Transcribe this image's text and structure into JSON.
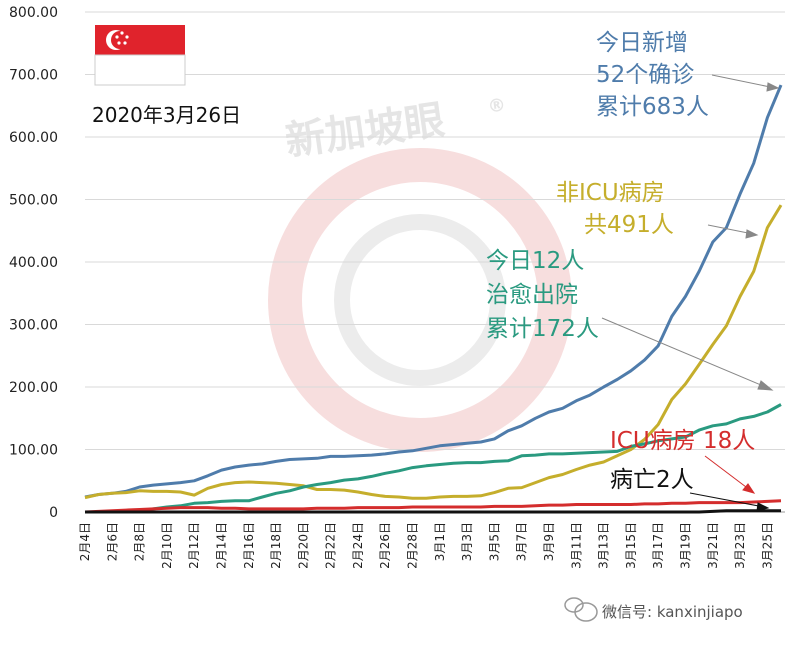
{
  "colors": {
    "confirmed": "#4f7cab",
    "non_icu": "#c5ae2c",
    "discharged": "#2a9a80",
    "icu": "#d42d2d",
    "deaths": "#111111",
    "flag_red": "#e0232c"
  },
  "header": {
    "date": "2020年3月26日"
  },
  "watermark": {
    "text": "新加坡眼",
    "registered": "®"
  },
  "annotations": {
    "confirmed": [
      "今日新增",
      "52个确诊",
      "累计683人"
    ],
    "non_icu": [
      "非ICU病房",
      "共491人"
    ],
    "discharged": [
      "今日12人",
      "治愈出院",
      "累计172人"
    ],
    "icu": "ICU病房 18人",
    "deaths": "病亡2人"
  },
  "footer": {
    "wechat": "微信号: kanxinjiapo"
  },
  "chart_data": {
    "type": "line",
    "ylim": [
      0,
      800
    ],
    "y_ticks": [
      "0",
      "100.00",
      "200.00",
      "300.00",
      "400.00",
      "500.00",
      "600.00",
      "700.00",
      "800.00"
    ],
    "x_tick_labels": [
      "2月4日",
      "2月6日",
      "2月8日",
      "2月10日",
      "2月12日",
      "2月14日",
      "2月16日",
      "2月18日",
      "2月20日",
      "2月22日",
      "2月24日",
      "2月26日",
      "2月28日",
      "3月1日",
      "3月3日",
      "3月5日",
      "3月7日",
      "3月9日",
      "3月11日",
      "3月13日",
      "3月15日",
      "3月17日",
      "3月19日",
      "3月21日",
      "3月23日",
      "3月25日"
    ],
    "x": [
      "2月4日",
      "2月5日",
      "2月6日",
      "2月7日",
      "2月8日",
      "2月9日",
      "2月10日",
      "2月11日",
      "2月12日",
      "2月13日",
      "2月14日",
      "2月15日",
      "2月16日",
      "2月17日",
      "2月18日",
      "2月19日",
      "2月20日",
      "2月21日",
      "2月22日",
      "2月23日",
      "2月24日",
      "2月25日",
      "2月26日",
      "2月27日",
      "2月28日",
      "2月29日",
      "3月1日",
      "3月2日",
      "3月3日",
      "3月4日",
      "3月5日",
      "3月6日",
      "3月7日",
      "3月8日",
      "3月9日",
      "3月10日",
      "3月11日",
      "3月12日",
      "3月13日",
      "3月14日",
      "3月15日",
      "3月16日",
      "3月17日",
      "3月18日",
      "3月19日",
      "3月20日",
      "3月21日",
      "3月22日",
      "3月23日",
      "3月24日",
      "3月25日",
      "3月26日"
    ],
    "series": [
      {
        "key": "confirmed",
        "values": [
          24,
          28,
          30,
          33,
          40,
          43,
          45,
          47,
          50,
          58,
          67,
          72,
          75,
          77,
          81,
          84,
          85,
          86,
          89,
          89,
          90,
          91,
          93,
          96,
          98,
          102,
          106,
          108,
          110,
          112,
          117,
          130,
          138,
          150,
          160,
          166,
          178,
          187,
          200,
          212,
          226,
          243,
          266,
          313,
          345,
          385,
          432,
          455,
          509,
          558,
          631,
          683
        ]
      },
      {
        "key": "non_icu",
        "values": [
          23,
          28,
          30,
          31,
          34,
          33,
          33,
          32,
          27,
          38,
          44,
          47,
          48,
          47,
          46,
          44,
          42,
          36,
          36,
          35,
          32,
          28,
          25,
          24,
          22,
          22,
          24,
          25,
          25,
          26,
          31,
          38,
          39,
          47,
          55,
          60,
          68,
          75,
          80,
          90,
          100,
          116,
          140,
          180,
          205,
          236,
          268,
          298,
          345,
          385,
          455,
          491
        ]
      },
      {
        "key": "discharged",
        "values": [
          0,
          0,
          0,
          1,
          2,
          5,
          8,
          10,
          14,
          15,
          17,
          18,
          18,
          24,
          30,
          34,
          40,
          44,
          47,
          51,
          53,
          57,
          62,
          66,
          71,
          74,
          76,
          78,
          79,
          79,
          81,
          82,
          90,
          91,
          93,
          93,
          94,
          95,
          96,
          97,
          105,
          109,
          114,
          117,
          120,
          131,
          138,
          141,
          149,
          153,
          160,
          172
        ]
      },
      {
        "key": "icu",
        "values": [
          0,
          1,
          2,
          3,
          4,
          5,
          6,
          7,
          7,
          7,
          6,
          6,
          5,
          5,
          5,
          5,
          5,
          6,
          6,
          6,
          7,
          7,
          7,
          7,
          8,
          8,
          8,
          8,
          8,
          8,
          9,
          9,
          9,
          10,
          11,
          11,
          12,
          12,
          12,
          12,
          12,
          13,
          13,
          14,
          14,
          15,
          15,
          15,
          15,
          16,
          17,
          18
        ]
      },
      {
        "key": "deaths",
        "values": [
          0,
          0,
          0,
          0,
          0,
          0,
          0,
          0,
          0,
          0,
          0,
          0,
          0,
          0,
          0,
          0,
          0,
          0,
          0,
          0,
          0,
          0,
          0,
          0,
          0,
          0,
          0,
          0,
          0,
          0,
          0,
          0,
          0,
          0,
          0,
          0,
          0,
          0,
          0,
          0,
          0,
          0,
          0,
          0,
          0,
          0,
          1,
          2,
          2,
          2,
          2,
          2
        ]
      }
    ]
  }
}
